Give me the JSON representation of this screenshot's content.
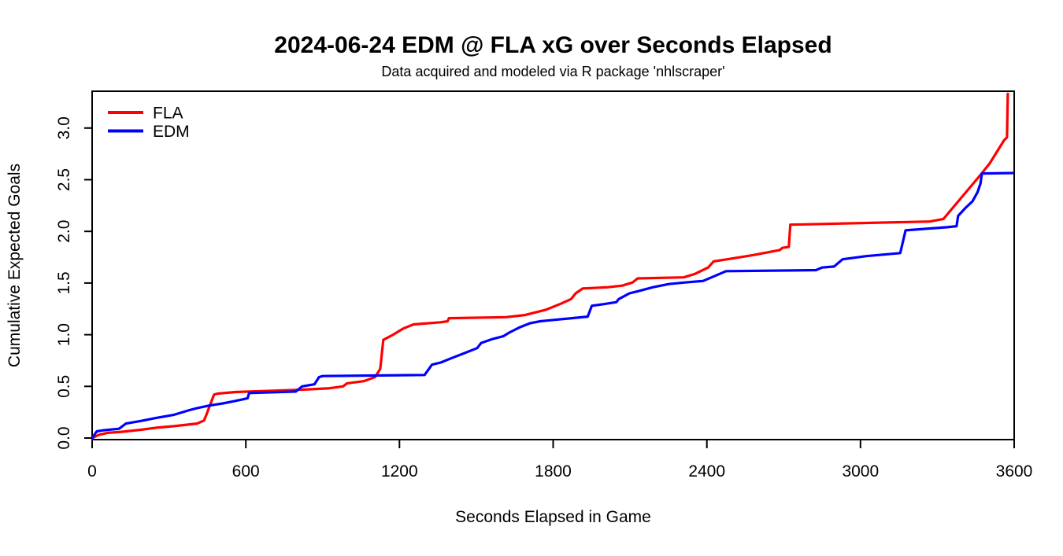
{
  "chart_data": {
    "type": "line",
    "title": "2024-06-24 EDM @ FLA xG over Seconds Elapsed",
    "subtitle": "Data acquired and modeled via R package 'nhlscraper'",
    "xlabel": "Seconds Elapsed in Game",
    "ylabel": "Cumulative Expected Goals",
    "xlim": [
      0,
      3600
    ],
    "ylim": [
      0,
      3.35
    ],
    "grid": false,
    "legend_position": "top-left",
    "x_ticks": [
      0,
      600,
      1200,
      1800,
      2400,
      3000,
      3600
    ],
    "x_tick_labels": [
      "0",
      "600",
      "1200",
      "1800",
      "2400",
      "3000",
      "3600"
    ],
    "y_ticks": [
      0.0,
      0.5,
      1.0,
      1.5,
      2.0,
      2.5,
      3.0
    ],
    "y_tick_labels": [
      "0.0",
      "0.5",
      "1.0",
      "1.5",
      "2.0",
      "2.5",
      "3.0"
    ],
    "series": [
      {
        "name": "FLA",
        "color": "#FF0000",
        "points": [
          [
            0,
            0
          ],
          [
            25,
            0.03
          ],
          [
            60,
            0.05
          ],
          [
            115,
            0.06
          ],
          [
            190,
            0.08
          ],
          [
            250,
            0.1
          ],
          [
            320,
            0.115
          ],
          [
            410,
            0.14
          ],
          [
            437,
            0.17
          ],
          [
            446,
            0.225
          ],
          [
            476,
            0.42
          ],
          [
            490,
            0.43
          ],
          [
            560,
            0.445
          ],
          [
            795,
            0.465
          ],
          [
            920,
            0.48
          ],
          [
            980,
            0.5
          ],
          [
            995,
            0.53
          ],
          [
            1060,
            0.55
          ],
          [
            1105,
            0.59
          ],
          [
            1125,
            0.67
          ],
          [
            1137,
            0.95
          ],
          [
            1175,
            1.0
          ],
          [
            1215,
            1.06
          ],
          [
            1255,
            1.1
          ],
          [
            1360,
            1.12
          ],
          [
            1388,
            1.13
          ],
          [
            1393,
            1.16
          ],
          [
            1615,
            1.17
          ],
          [
            1690,
            1.19
          ],
          [
            1770,
            1.24
          ],
          [
            1830,
            1.3
          ],
          [
            1870,
            1.345
          ],
          [
            1888,
            1.4
          ],
          [
            1915,
            1.447
          ],
          [
            2015,
            1.46
          ],
          [
            2070,
            1.475
          ],
          [
            2110,
            1.505
          ],
          [
            2130,
            1.545
          ],
          [
            2310,
            1.555
          ],
          [
            2355,
            1.59
          ],
          [
            2405,
            1.65
          ],
          [
            2427,
            1.71
          ],
          [
            2480,
            1.73
          ],
          [
            2580,
            1.77
          ],
          [
            2685,
            1.82
          ],
          [
            2695,
            1.84
          ],
          [
            2720,
            1.85
          ],
          [
            2726,
            2.065
          ],
          [
            3270,
            2.095
          ],
          [
            3324,
            2.12
          ],
          [
            3473,
            2.56
          ],
          [
            3505,
            2.66
          ],
          [
            3560,
            2.88
          ],
          [
            3572,
            2.91
          ],
          [
            3575,
            3.33
          ]
        ]
      },
      {
        "name": "EDM",
        "color": "#0000FF",
        "points": [
          [
            0,
            0
          ],
          [
            18,
            0.065
          ],
          [
            45,
            0.075
          ],
          [
            105,
            0.09
          ],
          [
            132,
            0.14
          ],
          [
            190,
            0.165
          ],
          [
            250,
            0.195
          ],
          [
            320,
            0.225
          ],
          [
            380,
            0.27
          ],
          [
            410,
            0.29
          ],
          [
            460,
            0.315
          ],
          [
            510,
            0.335
          ],
          [
            550,
            0.355
          ],
          [
            590,
            0.375
          ],
          [
            607,
            0.385
          ],
          [
            613,
            0.435
          ],
          [
            795,
            0.45
          ],
          [
            820,
            0.5
          ],
          [
            868,
            0.52
          ],
          [
            886,
            0.59
          ],
          [
            900,
            0.6
          ],
          [
            1298,
            0.61
          ],
          [
            1327,
            0.71
          ],
          [
            1360,
            0.73
          ],
          [
            1400,
            0.77
          ],
          [
            1452,
            0.82
          ],
          [
            1503,
            0.87
          ],
          [
            1519,
            0.92
          ],
          [
            1565,
            0.96
          ],
          [
            1605,
            0.985
          ],
          [
            1628,
            1.02
          ],
          [
            1668,
            1.07
          ],
          [
            1709,
            1.11
          ],
          [
            1750,
            1.13
          ],
          [
            1790,
            1.14
          ],
          [
            1873,
            1.16
          ],
          [
            1935,
            1.175
          ],
          [
            1951,
            1.28
          ],
          [
            1996,
            1.295
          ],
          [
            2047,
            1.315
          ],
          [
            2056,
            1.345
          ],
          [
            2098,
            1.4
          ],
          [
            2130,
            1.42
          ],
          [
            2190,
            1.46
          ],
          [
            2252,
            1.49
          ],
          [
            2314,
            1.505
          ],
          [
            2385,
            1.52
          ],
          [
            2475,
            1.615
          ],
          [
            2826,
            1.625
          ],
          [
            2850,
            1.65
          ],
          [
            2897,
            1.66
          ],
          [
            2930,
            1.73
          ],
          [
            3022,
            1.76
          ],
          [
            3155,
            1.79
          ],
          [
            3176,
            2.01
          ],
          [
            3339,
            2.04
          ],
          [
            3375,
            2.05
          ],
          [
            3381,
            2.15
          ],
          [
            3411,
            2.23
          ],
          [
            3437,
            2.29
          ],
          [
            3457,
            2.38
          ],
          [
            3468,
            2.46
          ],
          [
            3474,
            2.56
          ],
          [
            3600,
            2.565
          ]
        ]
      }
    ]
  }
}
